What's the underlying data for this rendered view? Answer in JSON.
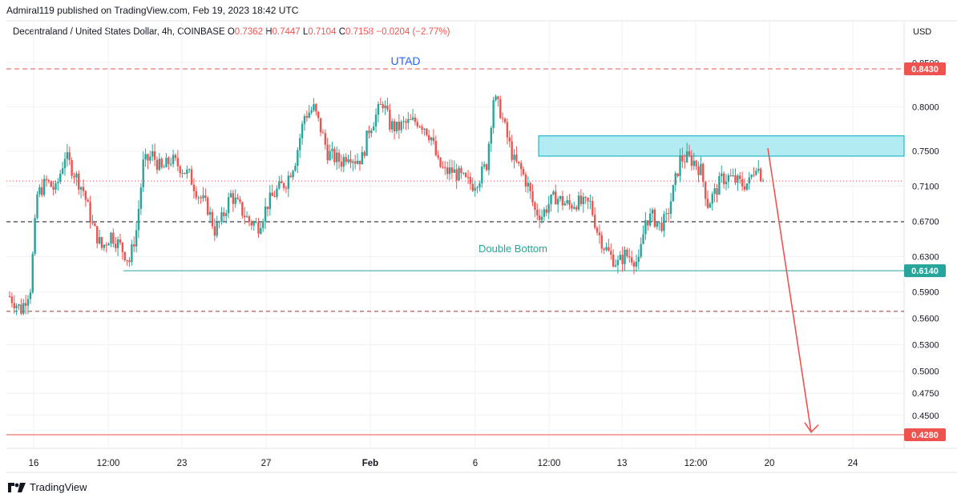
{
  "header": {
    "published": "Admiral119 published on TradingView.com, Feb 19, 2023 18:42 UTC",
    "symbol": "Decentraland / United States Dollar, 4h, COINBASE",
    "o_label": "O",
    "o_val": "0.7362",
    "h_label": "H",
    "h_val": "0.7447",
    "l_label": "L",
    "l_val": "0.7104",
    "c_label": "C",
    "c_val": "0.7158",
    "change": "−0.0204 (−2.77%)",
    "currency": "USD"
  },
  "footer": {
    "brand": "TradingView"
  },
  "colors": {
    "up": "#26a69a",
    "down": "#ef5350",
    "level_red": "#ef5350",
    "zone_fill": "#b2ebf2",
    "zone_border": "#00acc1",
    "teal_line": "#26a69a",
    "annotation_blue": "#2962ff"
  },
  "chart_data": {
    "type": "candlestick",
    "symbol": "MANA/USD",
    "interval": "4h",
    "y_range": [
      0.405,
      0.872
    ],
    "y_ticks": [
      0.85,
      0.8,
      0.75,
      0.71,
      0.67,
      0.63,
      0.59,
      0.56,
      0.53,
      0.5,
      0.475,
      0.45
    ],
    "y_tick_labels": [
      "0.8500",
      "0.8000",
      "0.7500",
      "0.7100",
      "0.6700",
      "0.6300",
      "0.5900",
      "0.5600",
      "0.5300",
      "0.5000",
      "0.4750",
      "0.4500"
    ],
    "x_tick_labels": [
      "16",
      "12:00",
      "23",
      "27",
      "Feb",
      "6",
      "12:00",
      "13",
      "12:00",
      "20",
      "24"
    ],
    "x_tick_bold": [
      false,
      false,
      false,
      false,
      true,
      false,
      false,
      false,
      false,
      false,
      false
    ],
    "price_levels": [
      {
        "label": "0.8430",
        "value": 0.843,
        "style": "dashed",
        "color": "#ef5350"
      },
      {
        "label": "0.6140",
        "value": 0.614,
        "style": "solid",
        "color": "#26a69a"
      },
      {
        "label": "0.4280",
        "value": 0.428,
        "style": "solid",
        "color": "#ef5350"
      }
    ],
    "dashed_levels": [
      {
        "value": 0.6695,
        "color": "#131722"
      },
      {
        "value": 0.568,
        "color": "#a03030"
      }
    ],
    "current_price": 0.7158,
    "resistance_zone": {
      "top": 0.767,
      "bottom": 0.744
    },
    "annotations": [
      {
        "text": "UTAD",
        "color": "#2962ff"
      },
      {
        "text": "Double Bottom",
        "color": "#26a69a"
      }
    ],
    "price_path": [
      [
        0,
        0.585
      ],
      [
        5,
        0.57
      ],
      [
        9,
        0.595
      ],
      [
        12,
        0.7
      ],
      [
        16,
        0.715
      ],
      [
        20,
        0.705
      ],
      [
        24,
        0.745
      ],
      [
        28,
        0.725
      ],
      [
        32,
        0.705
      ],
      [
        36,
        0.665
      ],
      [
        40,
        0.64
      ],
      [
        44,
        0.655
      ],
      [
        48,
        0.642
      ],
      [
        52,
        0.625
      ],
      [
        55,
        0.66
      ],
      [
        58,
        0.735
      ],
      [
        62,
        0.745
      ],
      [
        66,
        0.728
      ],
      [
        70,
        0.74
      ],
      [
        74,
        0.732
      ],
      [
        78,
        0.722
      ],
      [
        82,
        0.7
      ],
      [
        86,
        0.685
      ],
      [
        89,
        0.66
      ],
      [
        92,
        0.672
      ],
      [
        96,
        0.7
      ],
      [
        100,
        0.685
      ],
      [
        104,
        0.67
      ],
      [
        108,
        0.665
      ],
      [
        112,
        0.69
      ],
      [
        116,
        0.705
      ],
      [
        120,
        0.715
      ],
      [
        124,
        0.74
      ],
      [
        128,
        0.79
      ],
      [
        132,
        0.798
      ],
      [
        135,
        0.775
      ],
      [
        138,
        0.748
      ],
      [
        141,
        0.742
      ],
      [
        144,
        0.738
      ],
      [
        147,
        0.748
      ],
      [
        150,
        0.74
      ],
      [
        153,
        0.742
      ],
      [
        156,
        0.775
      ],
      [
        159,
        0.79
      ],
      [
        162,
        0.805
      ],
      [
        165,
        0.78
      ],
      [
        168,
        0.775
      ],
      [
        171,
        0.78
      ],
      [
        174,
        0.782
      ],
      [
        177,
        0.784
      ],
      [
        180,
        0.778
      ],
      [
        183,
        0.765
      ],
      [
        186,
        0.735
      ],
      [
        189,
        0.726
      ],
      [
        192,
        0.727
      ],
      [
        195,
        0.722
      ],
      [
        198,
        0.715
      ],
      [
        201,
        0.712
      ],
      [
        204,
        0.72
      ],
      [
        207,
        0.735
      ],
      [
        210,
        0.81
      ],
      [
        213,
        0.795
      ],
      [
        216,
        0.765
      ],
      [
        219,
        0.738
      ],
      [
        222,
        0.728
      ],
      [
        225,
        0.71
      ],
      [
        228,
        0.682
      ],
      [
        231,
        0.677
      ],
      [
        234,
        0.69
      ],
      [
        237,
        0.698
      ],
      [
        240,
        0.692
      ],
      [
        243,
        0.688
      ],
      [
        246,
        0.692
      ],
      [
        249,
        0.689
      ],
      [
        252,
        0.69
      ],
      [
        255,
        0.66
      ],
      [
        258,
        0.642
      ],
      [
        261,
        0.63
      ],
      [
        264,
        0.622
      ],
      [
        267,
        0.632
      ],
      [
        270,
        0.63
      ],
      [
        273,
        0.622
      ],
      [
        276,
        0.672
      ],
      [
        279,
        0.675
      ],
      [
        282,
        0.665
      ],
      [
        285,
        0.672
      ],
      [
        288,
        0.705
      ],
      [
        291,
        0.74
      ],
      [
        294,
        0.742
      ],
      [
        297,
        0.738
      ],
      [
        300,
        0.728
      ],
      [
        303,
        0.69
      ],
      [
        306,
        0.702
      ],
      [
        309,
        0.718
      ],
      [
        312,
        0.72
      ],
      [
        315,
        0.716
      ],
      [
        318,
        0.712
      ],
      [
        321,
        0.714
      ],
      [
        324,
        0.736
      ],
      [
        327,
        0.716
      ]
    ]
  }
}
